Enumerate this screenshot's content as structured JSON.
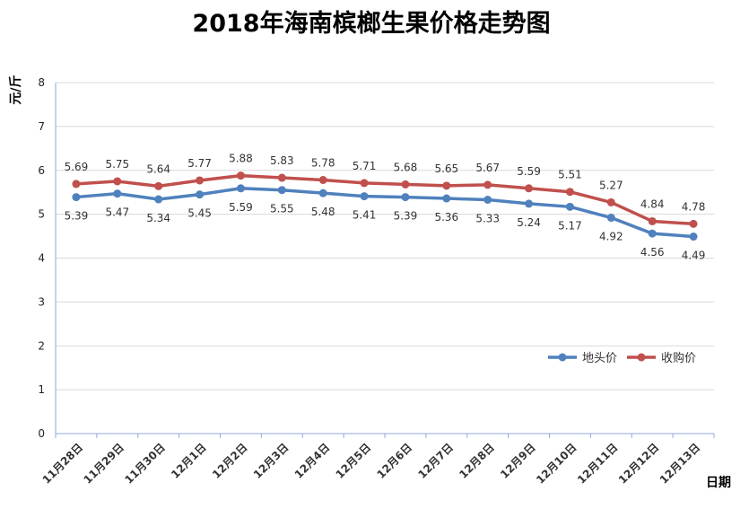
{
  "chart_data": {
    "type": "line",
    "title": "2018年海南槟榔生果价格走势图",
    "xlabel": "日期",
    "ylabel": "元/斤",
    "ylim": [
      0,
      8
    ],
    "yticks": [
      "0",
      "1",
      "2",
      "3",
      "4",
      "5",
      "6",
      "7",
      "8"
    ],
    "grid": true,
    "legend_position": "right",
    "categories": [
      "11月28日",
      "11月29日",
      "11月30日",
      "12月1日",
      "12月2日",
      "12月3日",
      "12月4日",
      "12月5日",
      "12月6日",
      "12月7日",
      "12月8日",
      "12月9日",
      "12月10日",
      "12月11日",
      "12月12日",
      "12月13日"
    ],
    "series": [
      {
        "name": "地头价",
        "color": "#4f81bd",
        "values": [
          5.39,
          5.47,
          5.34,
          5.45,
          5.59,
          5.55,
          5.48,
          5.41,
          5.39,
          5.36,
          5.33,
          5.24,
          5.17,
          4.92,
          4.56,
          4.49
        ],
        "labels": [
          "5.39",
          "5.47",
          "5.34",
          "5.45",
          "5.59",
          "5.55",
          "5.48",
          "5.41",
          "5.39",
          "5.36",
          "5.33",
          "5.24",
          "5.17",
          "4.92",
          "4.56",
          "4.49"
        ]
      },
      {
        "name": "收购价",
        "color": "#c0504d",
        "values": [
          5.69,
          5.75,
          5.64,
          5.77,
          5.88,
          5.83,
          5.78,
          5.71,
          5.68,
          5.65,
          5.67,
          5.59,
          5.51,
          5.27,
          4.84,
          4.78
        ],
        "labels": [
          "5.69",
          "5.75",
          "5.64",
          "5.77",
          "5.88",
          "5.83",
          "5.78",
          "5.71",
          "5.68",
          "5.65",
          "5.67",
          "5.59",
          "5.51",
          "5.27",
          "4.84",
          "4.78"
        ]
      }
    ]
  }
}
